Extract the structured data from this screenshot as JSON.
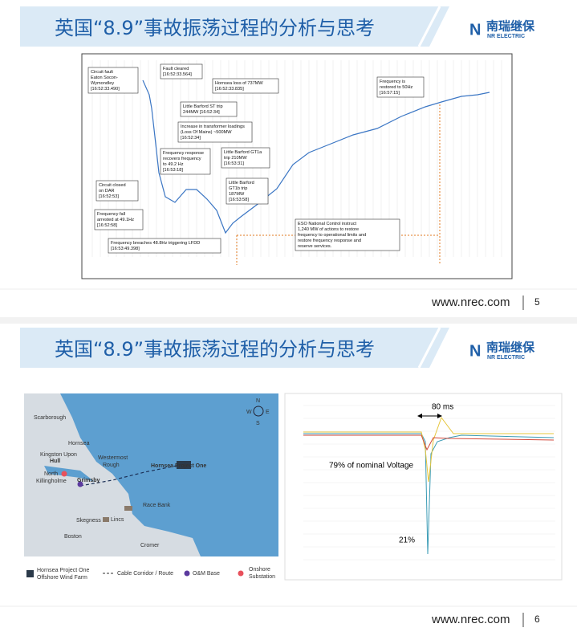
{
  "slides": [
    {
      "title": "英国“8.9”事故振荡过程的分析与思考",
      "logo": "南瑞继保",
      "logo_sub": "NR ELECTRIC",
      "url": "www.nrec.com",
      "page": "5",
      "annotations": [
        {
          "lines": [
            "Circuit    fault",
            "Eaton    Socon-",
            "Wymondley",
            "[16:52:33.490]"
          ]
        },
        {
          "lines": [
            "Fault cleared",
            "[16:52:33.564]"
          ]
        },
        {
          "lines": [
            "Hornsea loss of 737MW",
            "[16:52:33.835]"
          ]
        },
        {
          "lines": [
            "Little Barford ST trip",
            "244MW [16:52:34]"
          ]
        },
        {
          "lines": [
            "Increase in transformer loadings",
            "(Loss Of Mains) ~500MW",
            "[16:52:34]"
          ]
        },
        {
          "lines": [
            "Frequency response",
            "recovers frequency",
            "to 49.2 Hz",
            "[16:53:18]"
          ]
        },
        {
          "lines": [
            "Little Barford GT1a",
            "trip 210MW",
            "[16:53:31]"
          ]
        },
        {
          "lines": [
            "Circuit closed",
            "on DAR",
            "[16:52:53]"
          ]
        },
        {
          "lines": [
            "Little Barford",
            "GT1b trip",
            "187MW",
            "[16:53:58]"
          ]
        },
        {
          "lines": [
            "Frequency fall",
            "arrested at 49.1Hz",
            "[16:52:58]"
          ]
        },
        {
          "lines": [
            "Frequency breaches 48.8Hz triggering LFDD",
            "[16:53:49.398]"
          ]
        },
        {
          "lines": [
            "Frequency is",
            "restored to 50Hz",
            "[16:57:15]"
          ]
        },
        {
          "lines": [
            "ESO National Control instruct",
            "1,240 MW of actions to restore",
            "frequency to operational limits and",
            "restore frequency response and",
            "reserve services."
          ]
        }
      ]
    },
    {
      "title": "英国“8.9”事故振荡过程的分析与思考",
      "logo": "南瑞继保",
      "logo_sub": "NR ELECTRIC",
      "url": "www.nrec.com",
      "page": "6",
      "map_labels": [
        "Scarborough",
        "Hornsea",
        "Kingston Upon",
        "Hull",
        "Westermost",
        "Rough",
        "Hornsea Project One",
        "North",
        "Killingholme",
        "Grimsby",
        "Race Bank",
        "Skegness",
        "Lincs",
        "Boston",
        "Cromer"
      ],
      "compass": [
        "N",
        "W",
        "E",
        "S"
      ],
      "legend": [
        "Hornsea Project One",
        "Offshore Wind Farm",
        "Cable Corridor / Route",
        "O&M Base",
        "Onshore",
        "Substation"
      ],
      "voltage_notes": [
        "80 ms",
        "79% of nominal Voltage",
        "21%"
      ]
    }
  ]
}
